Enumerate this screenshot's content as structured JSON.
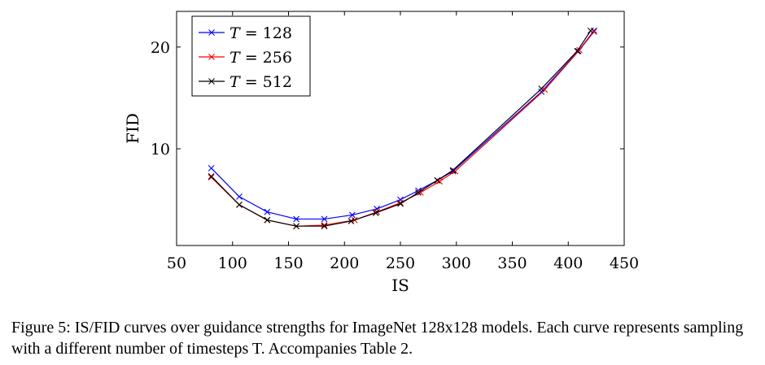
{
  "chart_data": {
    "type": "line",
    "xlabel": "IS",
    "ylabel": "FID",
    "xlim": [
      50,
      450
    ],
    "ylim": [
      0.5,
      23.5
    ],
    "xticks": [
      50,
      100,
      150,
      200,
      250,
      300,
      350,
      400,
      450
    ],
    "yticks": [
      10,
      20
    ],
    "grid": false,
    "legend_position": "top-left",
    "series": [
      {
        "name": "T = 128",
        "legend_var": "T",
        "legend_eq": " = 128",
        "color": "#0000ff",
        "marker": "x",
        "x": [
          81,
          106,
          131,
          157,
          182,
          207,
          229,
          250,
          266,
          283,
          297,
          376,
          409,
          423
        ],
        "y": [
          8.1,
          5.3,
          3.8,
          3.1,
          3.1,
          3.5,
          4.1,
          5.0,
          5.9,
          6.9,
          7.8,
          15.6,
          19.6,
          21.6
        ]
      },
      {
        "name": "T = 256",
        "legend_var": "T",
        "legend_eq": " = 256",
        "color": "#ff0000",
        "marker": "x",
        "x": [
          81,
          106,
          131,
          157,
          182,
          209,
          229,
          250,
          268,
          285,
          299,
          379,
          410,
          423
        ],
        "y": [
          7.2,
          4.5,
          3.0,
          2.4,
          2.5,
          3.0,
          3.8,
          4.7,
          5.7,
          6.8,
          7.8,
          15.8,
          19.7,
          21.5
        ]
      },
      {
        "name": "T = 512",
        "legend_var": "T",
        "legend_eq": " = 512",
        "color": "#000000",
        "marker": "x",
        "x": [
          81,
          106,
          131,
          157,
          182,
          206,
          228,
          250,
          266,
          283,
          297,
          376,
          408,
          420
        ],
        "y": [
          7.3,
          4.5,
          3.0,
          2.4,
          2.4,
          2.9,
          3.7,
          4.6,
          5.7,
          6.9,
          7.9,
          15.9,
          19.6,
          21.6
        ]
      }
    ]
  },
  "caption": {
    "text": "Figure 5: IS/FID curves over guidance strengths for ImageNet 128x128 models. Each curve represents sampling with a different number of timesteps T. Accompanies Table 2."
  }
}
